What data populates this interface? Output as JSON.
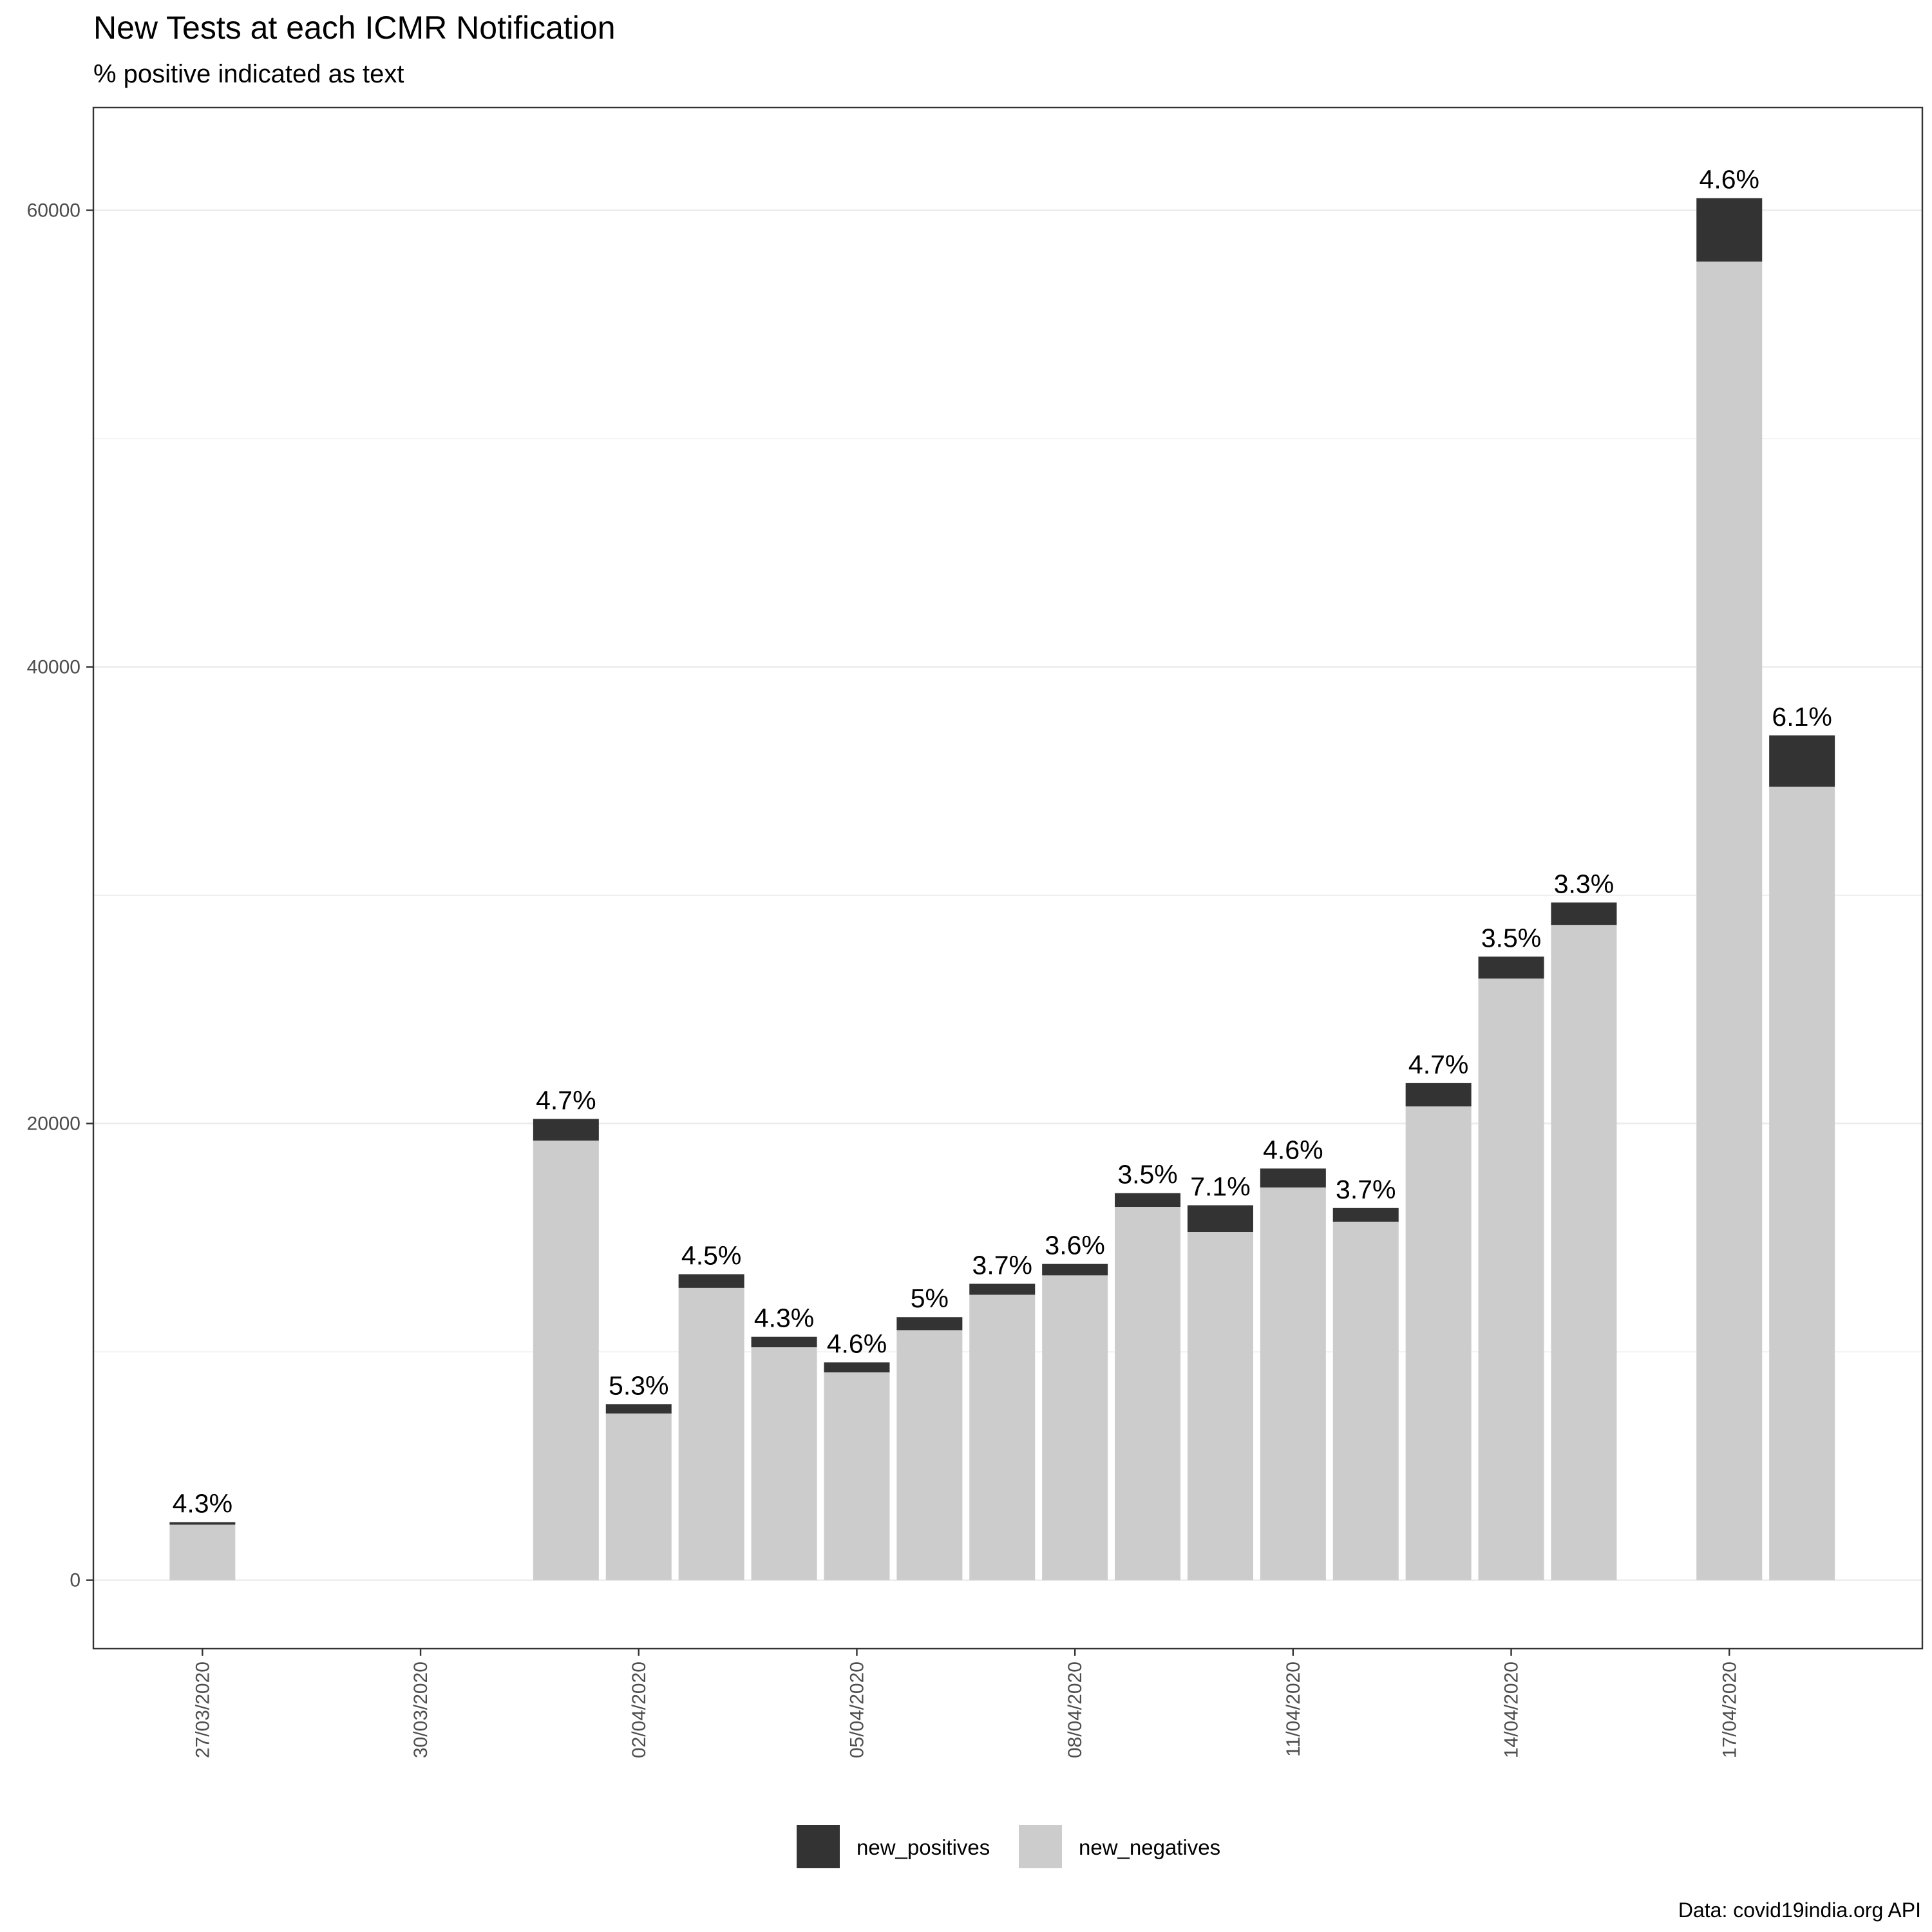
{
  "chart_data": {
    "type": "bar",
    "stacked": true,
    "title": "New Tests at each ICMR Notification",
    "subtitle": "% positive indicated as text",
    "caption": "Data: covid19india.org API",
    "xlabel": "",
    "ylabel": "",
    "ylim": [
      -3000,
      64500
    ],
    "xlim": [
      "26/03/2020",
      "19/04/2020"
    ],
    "yticks": [
      0,
      20000,
      40000,
      60000
    ],
    "xtick_labels": [
      "27/03/2020",
      "30/03/2020",
      "02/04/2020",
      "05/04/2020",
      "08/04/2020",
      "11/04/2020",
      "14/04/2020",
      "17/04/2020"
    ],
    "grid": true,
    "legend_position": "bottom",
    "colors": {
      "new_positives": "#333333",
      "new_negatives": "#cccccc"
    },
    "series": [
      {
        "name": "new_positives",
        "color": "#333333"
      },
      {
        "name": "new_negatives",
        "color": "#cccccc"
      }
    ],
    "points": [
      {
        "date": "27/03/2020",
        "new_negatives": 2430,
        "new_positives": 110,
        "label": "4.3%"
      },
      {
        "date": "01/04/2020",
        "new_negatives": 19250,
        "new_positives": 950,
        "label": "4.7%"
      },
      {
        "date": "02/04/2020",
        "new_negatives": 7300,
        "new_positives": 410,
        "label": "5.3%"
      },
      {
        "date": "03/04/2020",
        "new_negatives": 12800,
        "new_positives": 600,
        "label": "4.5%"
      },
      {
        "date": "04/04/2020",
        "new_negatives": 10200,
        "new_positives": 460,
        "label": "4.3%"
      },
      {
        "date": "05/04/2020",
        "new_negatives": 9100,
        "new_positives": 440,
        "label": "4.6%"
      },
      {
        "date": "06/04/2020",
        "new_negatives": 10950,
        "new_positives": 570,
        "label": "5%"
      },
      {
        "date": "07/04/2020",
        "new_negatives": 12500,
        "new_positives": 480,
        "label": "3.7%"
      },
      {
        "date": "08/04/2020",
        "new_negatives": 13350,
        "new_positives": 500,
        "label": "3.6%"
      },
      {
        "date": "09/04/2020",
        "new_negatives": 16350,
        "new_positives": 600,
        "label": "3.5%"
      },
      {
        "date": "10/04/2020",
        "new_negatives": 15250,
        "new_positives": 1170,
        "label": "7.1%"
      },
      {
        "date": "11/04/2020",
        "new_negatives": 17200,
        "new_positives": 830,
        "label": "4.6%"
      },
      {
        "date": "12/04/2020",
        "new_negatives": 15700,
        "new_positives": 600,
        "label": "3.7%"
      },
      {
        "date": "13/04/2020",
        "new_negatives": 20750,
        "new_positives": 1020,
        "label": "4.7%"
      },
      {
        "date": "14/04/2020",
        "new_negatives": 26350,
        "new_positives": 960,
        "label": "3.5%"
      },
      {
        "date": "15/04/2020",
        "new_negatives": 28700,
        "new_positives": 980,
        "label": "3.3%"
      },
      {
        "date": "17/04/2020",
        "new_negatives": 57750,
        "new_positives": 2780,
        "label": "4.6%"
      },
      {
        "date": "18/04/2020",
        "new_negatives": 34750,
        "new_positives": 2250,
        "label": "6.1%"
      }
    ]
  }
}
